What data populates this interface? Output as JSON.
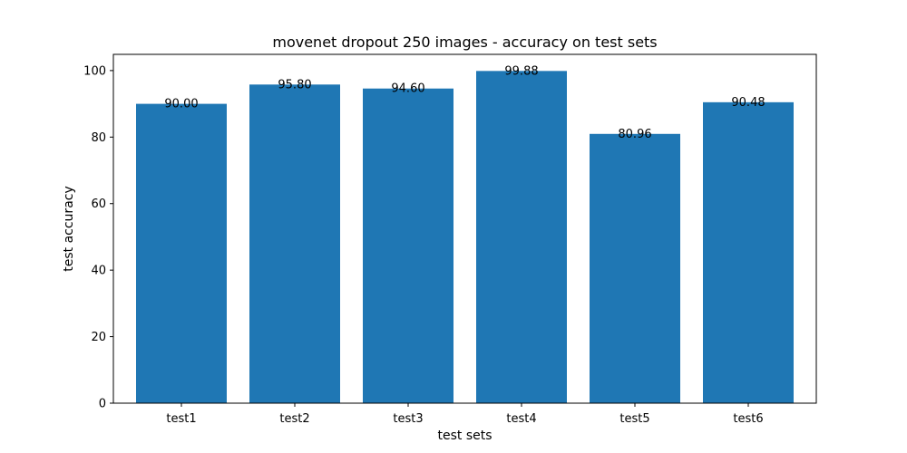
{
  "chart_data": {
    "type": "bar",
    "title": "movenet dropout 250 images -  accuracy on test sets",
    "xlabel": "test sets",
    "ylabel": "test accuracy",
    "categories": [
      "test1",
      "test2",
      "test3",
      "test4",
      "test5",
      "test6"
    ],
    "values": [
      90.0,
      95.8,
      94.6,
      99.88,
      80.96,
      90.48
    ],
    "value_labels": [
      "90.00",
      "95.80",
      "94.60",
      "99.88",
      "80.96",
      "90.48"
    ],
    "ylim": [
      0,
      104.874
    ],
    "yticks": [
      0,
      20,
      40,
      60,
      80,
      100
    ],
    "grid": false,
    "bar_color": "#1f77b4"
  }
}
